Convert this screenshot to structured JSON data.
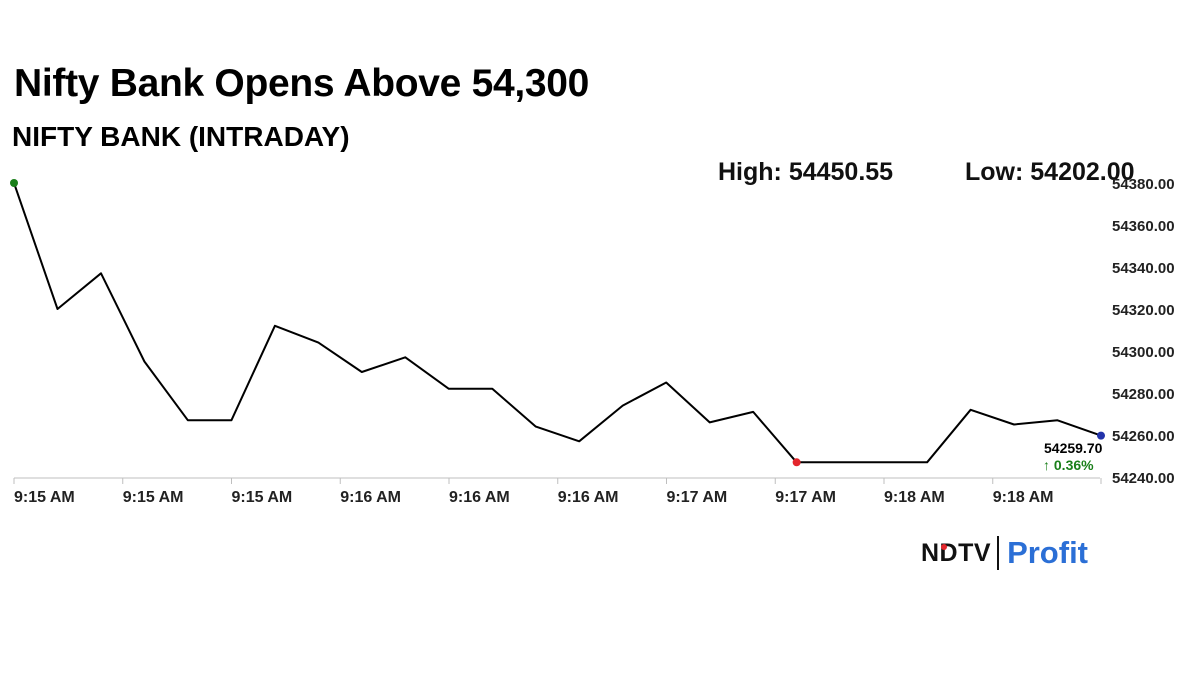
{
  "headline": "Nifty Bank Opens Above 54,300",
  "subtitle": "NIFTY BANK (INTRADAY)",
  "stats": {
    "high": "High: 54450.55",
    "low": "Low: 54202.00"
  },
  "last_price": {
    "value": "54259.70",
    "change": "↑ 0.36%",
    "change_color": "#1a7f1a"
  },
  "logo": {
    "left": "NDTV",
    "right": "Profit"
  },
  "colors": {
    "line": "#000000",
    "open_marker": "#1a7f1a",
    "low_marker": "#e3262c",
    "last_marker": "#2233aa",
    "axis": "#bfbfbf",
    "brand_blue": "#2b6fd6"
  },
  "chart_data": {
    "type": "line",
    "title": "Nifty Bank Opens Above 54,300",
    "subtitle": "NIFTY BANK (INTRADAY)",
    "ylim": [
      54240,
      54380
    ],
    "yticks": [
      "54380.00",
      "54360.00",
      "54340.00",
      "54320.00",
      "54300.00",
      "54280.00",
      "54260.00",
      "54240.00"
    ],
    "ytick_values": [
      54380,
      54360,
      54340,
      54320,
      54300,
      54280,
      54260,
      54240
    ],
    "xtick_labels": [
      "9:15 AM",
      "9:15 AM",
      "9:15 AM",
      "9:16 AM",
      "9:16 AM",
      "9:16 AM",
      "9:17 AM",
      "9:17 AM",
      "9:18 AM",
      "9:18 AM"
    ],
    "xlim": [
      0,
      25
    ],
    "grid": false,
    "series": [
      {
        "values": [
          54380,
          54320,
          54337,
          54295,
          54267,
          54267,
          54312,
          54304,
          54290,
          54297,
          54282,
          54282,
          54264,
          54257,
          54274,
          54285,
          54266,
          54271,
          54247,
          54247,
          54247,
          54247,
          54272,
          54265,
          54267,
          54259.7
        ]
      }
    ],
    "markers": [
      {
        "index": 0,
        "kind": "open"
      },
      {
        "index": 18,
        "kind": "low"
      },
      {
        "index": 25,
        "kind": "last"
      }
    ]
  }
}
